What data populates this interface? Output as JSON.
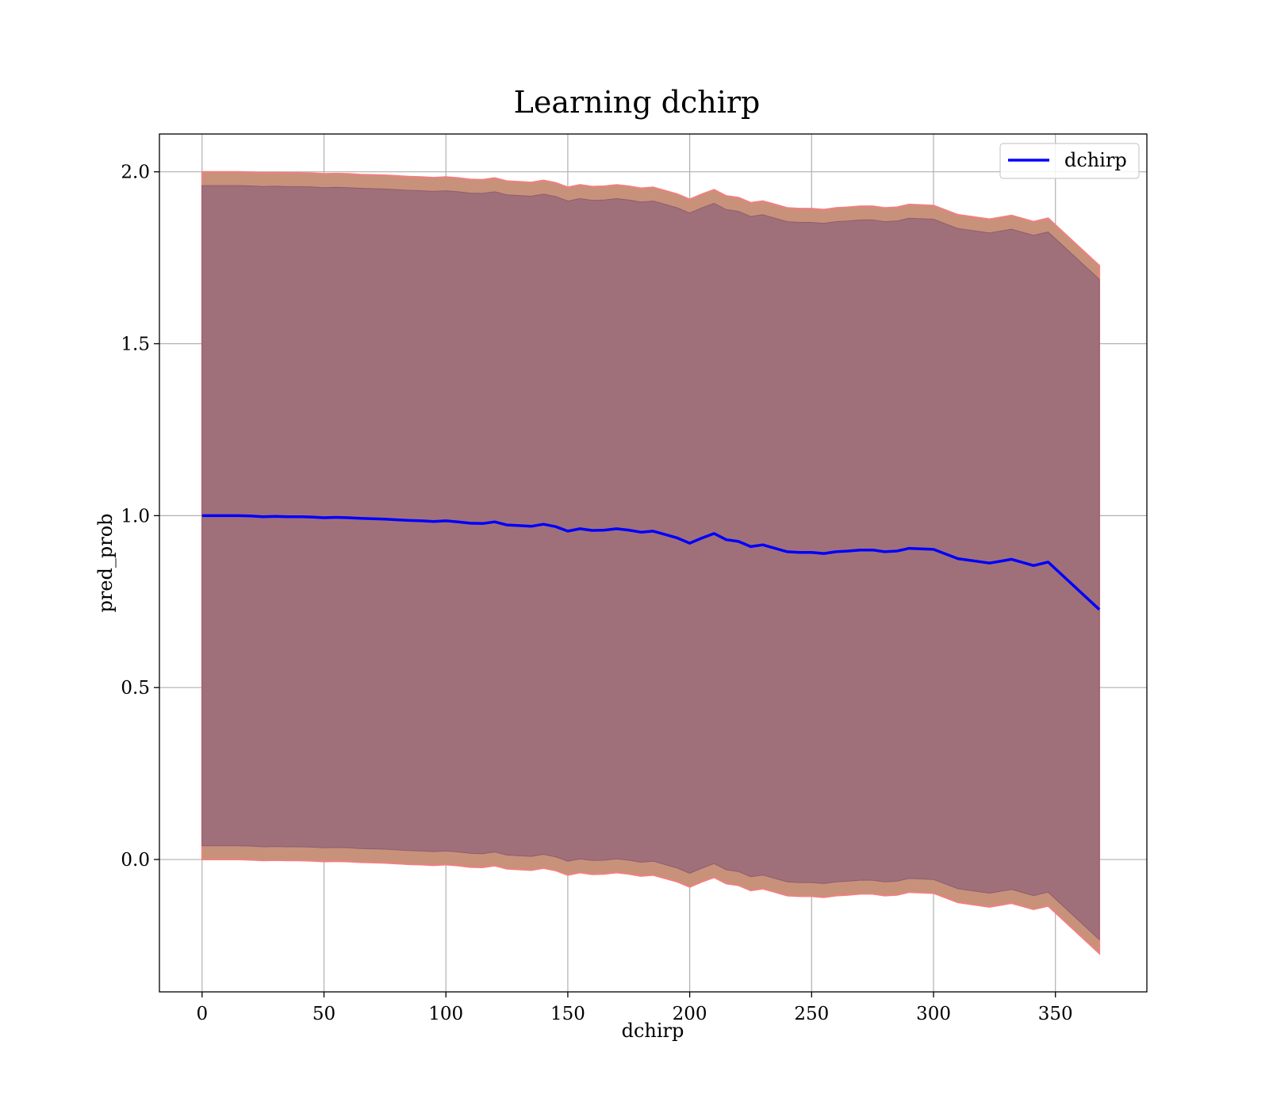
{
  "chart_data": {
    "type": "line",
    "title": "Learning dchirp",
    "xlabel": "dchirp",
    "ylabel": "pred_prob",
    "xlim": [
      -17.5,
      387.5
    ],
    "ylim": [
      -0.385,
      2.11
    ],
    "xticks": [
      "0",
      "50",
      "100",
      "150",
      "200",
      "250",
      "300",
      "350"
    ],
    "yticks": [
      "0.0",
      "0.5",
      "1.0",
      "1.5",
      "2.0"
    ],
    "grid": true,
    "legend": "top-right",
    "colors": {
      "line": "#0000ff",
      "outer_band": "#c8917a",
      "outer_edge": "#f08080",
      "inner_band": "#a0707a"
    },
    "series": [
      {
        "name": "dchirp",
        "x": [
          0,
          5,
          10,
          15,
          20,
          25,
          30,
          35,
          40,
          45,
          50,
          55,
          60,
          65,
          70,
          75,
          80,
          85,
          90,
          95,
          100,
          105,
          110,
          115,
          120,
          125,
          130,
          135,
          140,
          145,
          150,
          155,
          160,
          165,
          170,
          175,
          180,
          185,
          190,
          195,
          200,
          205,
          210,
          215,
          220,
          225,
          230,
          235,
          240,
          245,
          250,
          255,
          260,
          265,
          270,
          275,
          280,
          285,
          290,
          300,
          310,
          323,
          332,
          341,
          347,
          368
        ],
        "y": [
          1.0,
          1.0,
          1.0,
          1.0,
          0.999,
          0.997,
          0.998,
          0.997,
          0.997,
          0.996,
          0.994,
          0.995,
          0.994,
          0.992,
          0.991,
          0.99,
          0.988,
          0.986,
          0.985,
          0.983,
          0.985,
          0.982,
          0.978,
          0.977,
          0.982,
          0.973,
          0.971,
          0.969,
          0.975,
          0.968,
          0.955,
          0.962,
          0.957,
          0.958,
          0.962,
          0.958,
          0.952,
          0.955,
          0.945,
          0.935,
          0.92,
          0.935,
          0.948,
          0.93,
          0.925,
          0.91,
          0.915,
          0.905,
          0.895,
          0.893,
          0.893,
          0.89,
          0.895,
          0.897,
          0.9,
          0.9,
          0.895,
          0.897,
          0.905,
          0.902,
          0.875,
          0.862,
          0.873,
          0.855,
          0.865,
          0.727
        ],
        "outer_upper": [
          2.0,
          2.0,
          2.0,
          2.0,
          1.999,
          1.997,
          1.998,
          1.997,
          1.997,
          1.996,
          1.994,
          1.995,
          1.994,
          1.992,
          1.991,
          1.99,
          1.988,
          1.986,
          1.985,
          1.983,
          1.985,
          1.982,
          1.978,
          1.977,
          1.982,
          1.973,
          1.971,
          1.969,
          1.975,
          1.968,
          1.955,
          1.962,
          1.957,
          1.958,
          1.962,
          1.958,
          1.952,
          1.955,
          1.945,
          1.935,
          1.92,
          1.935,
          1.948,
          1.93,
          1.925,
          1.91,
          1.915,
          1.905,
          1.895,
          1.893,
          1.893,
          1.89,
          1.895,
          1.897,
          1.9,
          1.9,
          1.895,
          1.897,
          1.905,
          1.902,
          1.875,
          1.862,
          1.873,
          1.855,
          1.865,
          1.727
        ],
        "outer_lower": [
          0.0,
          0.0,
          0.0,
          0.0,
          -0.001,
          -0.003,
          -0.002,
          -0.003,
          -0.003,
          -0.004,
          -0.006,
          -0.005,
          -0.006,
          -0.008,
          -0.009,
          -0.01,
          -0.012,
          -0.014,
          -0.015,
          -0.017,
          -0.015,
          -0.018,
          -0.022,
          -0.023,
          -0.018,
          -0.027,
          -0.029,
          -0.031,
          -0.025,
          -0.032,
          -0.045,
          -0.038,
          -0.043,
          -0.042,
          -0.038,
          -0.042,
          -0.048,
          -0.045,
          -0.055,
          -0.065,
          -0.08,
          -0.065,
          -0.052,
          -0.07,
          -0.075,
          -0.09,
          -0.085,
          -0.095,
          -0.105,
          -0.107,
          -0.107,
          -0.11,
          -0.105,
          -0.103,
          -0.1,
          -0.1,
          -0.105,
          -0.103,
          -0.095,
          -0.098,
          -0.125,
          -0.138,
          -0.127,
          -0.145,
          -0.135,
          -0.273
        ],
        "inner_upper": [
          1.96,
          1.96,
          1.96,
          1.96,
          1.959,
          1.957,
          1.958,
          1.957,
          1.957,
          1.956,
          1.954,
          1.955,
          1.954,
          1.952,
          1.951,
          1.95,
          1.948,
          1.946,
          1.945,
          1.943,
          1.945,
          1.942,
          1.938,
          1.937,
          1.942,
          1.933,
          1.931,
          1.929,
          1.935,
          1.928,
          1.915,
          1.922,
          1.917,
          1.918,
          1.922,
          1.918,
          1.912,
          1.915,
          1.905,
          1.895,
          1.88,
          1.895,
          1.908,
          1.89,
          1.885,
          1.87,
          1.875,
          1.865,
          1.855,
          1.853,
          1.853,
          1.85,
          1.855,
          1.857,
          1.86,
          1.86,
          1.855,
          1.857,
          1.865,
          1.862,
          1.835,
          1.822,
          1.833,
          1.815,
          1.825,
          1.687
        ],
        "inner_lower": [
          0.04,
          0.04,
          0.04,
          0.04,
          0.039,
          0.037,
          0.038,
          0.037,
          0.037,
          0.036,
          0.034,
          0.035,
          0.034,
          0.032,
          0.031,
          0.03,
          0.028,
          0.026,
          0.025,
          0.023,
          0.025,
          0.022,
          0.018,
          0.017,
          0.022,
          0.013,
          0.011,
          0.009,
          0.015,
          0.008,
          -0.005,
          0.002,
          -0.003,
          -0.002,
          0.002,
          -0.002,
          -0.008,
          -0.005,
          -0.015,
          -0.025,
          -0.04,
          -0.025,
          -0.012,
          -0.03,
          -0.035,
          -0.05,
          -0.045,
          -0.055,
          -0.065,
          -0.067,
          -0.067,
          -0.07,
          -0.065,
          -0.063,
          -0.06,
          -0.06,
          -0.065,
          -0.063,
          -0.055,
          -0.058,
          -0.085,
          -0.098,
          -0.087,
          -0.105,
          -0.095,
          -0.233
        ]
      }
    ]
  }
}
